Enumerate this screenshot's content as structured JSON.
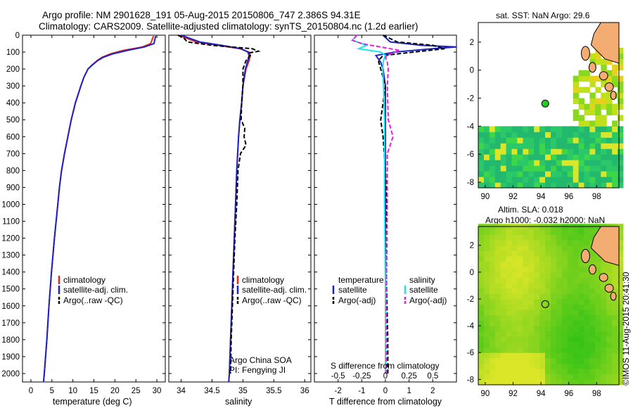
{
  "figure": {
    "title_line1": "Argo profile: NM 2901628_191 05-Aug-2015 20150806_747 2.386S 94.31E",
    "title_line2": "Climatology: CARS2009. Satellite-adjusted climatology: synTS_20150804.nc (1.2d earlier)",
    "credit": "©IMOS 11-Aug-2015 20:41:30",
    "colors": {
      "climatology": "#e8261c",
      "satellite": "#1a22c8",
      "argo": "#000000",
      "salinity_sat": "#19e6ee",
      "salinity_argo": "#e81ee0",
      "ocean_green": "#22cc22",
      "land": "#f3ad72"
    }
  },
  "chart_data": [
    {
      "type": "line",
      "name": "temperature-profile",
      "xlabel": "temperature (deg C)",
      "ylabel": "",
      "xlim": [
        -2,
        32
      ],
      "ylim": [
        2050,
        0
      ],
      "x_ticks": [
        0,
        5,
        10,
        15,
        20,
        25,
        30
      ],
      "y_ticks": [
        0,
        100,
        200,
        300,
        400,
        500,
        600,
        700,
        800,
        900,
        1000,
        1100,
        1200,
        1300,
        1400,
        1500,
        1600,
        1700,
        1800,
        1900,
        2000
      ],
      "legend": [
        "climatology",
        "satellite-adj. clim.",
        "Argo(..raw -QC)"
      ],
      "series": [
        {
          "name": "climatology",
          "color": "#e8261c",
          "depth": [
            5,
            50,
            70,
            90,
            110,
            130,
            150,
            175,
            200,
            250,
            300,
            400,
            500,
            600,
            700,
            800,
            900,
            1000,
            1200,
            1400,
            1600,
            1800,
            2000,
            2050
          ],
          "values": [
            29.2,
            28.5,
            26.5,
            22,
            19,
            17,
            15.8,
            14.6,
            13.6,
            12.6,
            11.9,
            10.6,
            9.6,
            8.8,
            8.0,
            7.3,
            6.8,
            6.4,
            5.6,
            4.9,
            4.3,
            3.8,
            3.2,
            3.0
          ]
        },
        {
          "name": "satellite-adj. clim.",
          "color": "#1a22c8",
          "depth": [
            5,
            50,
            70,
            90,
            110,
            130,
            150,
            175,
            200,
            250,
            300,
            400,
            500,
            600,
            700,
            800,
            900,
            1000,
            1200,
            1400,
            1600,
            1800,
            2000,
            2050
          ],
          "values": [
            29.7,
            29.3,
            27,
            23,
            19.5,
            17.3,
            15.9,
            14.7,
            13.6,
            12.6,
            11.9,
            10.6,
            9.6,
            8.8,
            8.0,
            7.3,
            6.8,
            6.4,
            5.6,
            4.9,
            4.3,
            3.8,
            3.2,
            3.0
          ]
        }
      ]
    },
    {
      "type": "line",
      "name": "salinity-profile",
      "xlabel": "salinity",
      "ylabel": "",
      "xlim": [
        33.8,
        36.1
      ],
      "ylim": [
        2050,
        0
      ],
      "x_ticks": [
        34,
        34.5,
        35,
        35.5,
        36
      ],
      "legend": [
        "climatology",
        "satellite-adj. clim.",
        "Argo(..raw -QC)"
      ],
      "annotation": [
        "Argo China SOA",
        "PI: Fengying JI"
      ],
      "series": [
        {
          "name": "climatology",
          "color": "#e8261c",
          "depth": [
            0,
            20,
            40,
            60,
            80,
            100,
            120,
            150,
            200,
            300,
            400,
            500,
            600,
            800,
            1000,
            1200,
            1400,
            1600,
            1800,
            2000,
            2050
          ],
          "values": [
            33.95,
            34.1,
            34.25,
            34.6,
            34.95,
            35.1,
            35.12,
            35.1,
            35.05,
            35.0,
            34.98,
            34.95,
            34.93,
            34.9,
            34.88,
            34.86,
            34.84,
            34.82,
            34.8,
            34.78,
            34.77
          ]
        },
        {
          "name": "satellite-adj. clim.",
          "color": "#1a22c8",
          "depth": [
            0,
            20,
            40,
            60,
            80,
            100,
            120,
            150,
            200,
            300,
            400,
            500,
            600,
            800,
            1000,
            1200,
            1400,
            1600,
            1800,
            2000,
            2050
          ],
          "values": [
            34.0,
            34.15,
            34.3,
            34.65,
            34.97,
            35.08,
            35.1,
            35.08,
            35.04,
            35.0,
            34.98,
            34.95,
            34.93,
            34.9,
            34.88,
            34.86,
            34.84,
            34.82,
            34.8,
            34.78,
            34.77
          ]
        },
        {
          "name": "Argo(..raw -QC)",
          "color": "#000000",
          "dashed": true,
          "depth": [
            0,
            20,
            40,
            60,
            80,
            95,
            105,
            120,
            150,
            200,
            300,
            400,
            500,
            550,
            600,
            650,
            700,
            800,
            1000,
            1200,
            1400,
            1600,
            1800,
            2000
          ],
          "values": [
            33.95,
            34.05,
            34.1,
            34.5,
            35.15,
            35.25,
            35.1,
            35.12,
            35.05,
            35.0,
            35.0,
            34.98,
            34.97,
            35.03,
            35.02,
            35.05,
            34.96,
            34.92,
            34.9,
            34.87,
            34.85,
            34.83,
            34.81,
            34.8
          ]
        }
      ]
    },
    {
      "type": "line",
      "name": "difference-profile",
      "xlabel": "T difference from climatology",
      "x2label": "S difference from climatology",
      "ylabel": "",
      "xlim": [
        -3,
        3
      ],
      "ylim": [
        2050,
        0
      ],
      "x_ticks": [
        -2,
        -1,
        0,
        1,
        2
      ],
      "x2_ticks": [
        "-0.5",
        "-0.25",
        "0",
        "0.25",
        "0.5"
      ],
      "legend": {
        "temperature_header": "temperature",
        "salinity_header": "salinity",
        "items": [
          "satellite",
          "Argo(-adj)",
          "satellite",
          "Argo(-adj)"
        ]
      },
      "series": [
        {
          "name": "temperature satellite",
          "color": "#1a22c8",
          "depth": [
            0,
            40,
            60,
            70,
            80,
            100,
            120,
            140,
            160,
            200,
            300,
            500,
            1000,
            2000
          ],
          "values": [
            -0.1,
            0.2,
            1.5,
            3.0,
            2.0,
            0.4,
            -0.4,
            -0.3,
            -0.2,
            -0.1,
            0.0,
            0.0,
            0.0,
            0.0
          ]
        },
        {
          "name": "temperature Argo(-adj)",
          "color": "#000000",
          "dashed": true,
          "depth": [
            0,
            40,
            60,
            80,
            100,
            120,
            150,
            200,
            300,
            400,
            500,
            600,
            800,
            1000,
            1200,
            1500,
            1800,
            2000
          ],
          "values": [
            -0.1,
            0.5,
            2.0,
            2.5,
            1.2,
            -0.1,
            -0.3,
            -0.2,
            0.0,
            -0.1,
            -0.2,
            -0.1,
            0.0,
            0.05,
            0.0,
            0.05,
            0.1,
            0.1
          ]
        },
        {
          "name": "salinity satellite",
          "color": "#19e6ee",
          "depth": [
            0,
            30,
            60,
            80,
            100,
            120,
            150,
            200,
            300,
            500,
            800,
            1000,
            1500,
            2000
          ],
          "values": [
            -0.3,
            -0.35,
            -0.2,
            -0.28,
            -0.05,
            0.0,
            -0.02,
            -0.03,
            -0.02,
            -0.01,
            -0.01,
            -0.01,
            0.0,
            0.0
          ]
        },
        {
          "name": "salinity Argo(-adj)",
          "color": "#e81ee0",
          "dashed": true,
          "depth": [
            0,
            30,
            50,
            70,
            90,
            110,
            130,
            160,
            200,
            300,
            500,
            600,
            700,
            1000,
            1500,
            2000
          ],
          "values": [
            -0.3,
            -0.35,
            -0.25,
            -0.05,
            0.15,
            0.05,
            0.0,
            0.02,
            0.03,
            0.02,
            0.03,
            0.08,
            0.02,
            0.02,
            0.01,
            0.01
          ]
        }
      ]
    },
    {
      "type": "heatmap",
      "name": "sst-map",
      "title": "sat. SST: NaN Argo: 29.6",
      "xlim": [
        89.5,
        99.6
      ],
      "ylim": [
        -8.4,
        3.4
      ],
      "x_ticks": [
        90,
        92,
        94,
        96,
        98
      ],
      "y_ticks": [
        2,
        0,
        -2,
        -4,
        -6,
        -8
      ],
      "marker": {
        "lon": 94.31,
        "lat": -2.386
      }
    },
    {
      "type": "heatmap",
      "name": "sla-map",
      "title_line1": "Altim. SLA: 0.018",
      "title_line2": "Argo h1000: -0.032 h2000: NaN",
      "xlim": [
        89.5,
        99.6
      ],
      "ylim": [
        -8.4,
        3.4
      ],
      "x_ticks": [
        90,
        92,
        94,
        96,
        98
      ],
      "y_ticks": [
        2,
        0,
        -2,
        -4,
        -6,
        -8
      ],
      "marker": {
        "lon": 94.31,
        "lat": -2.386
      }
    }
  ]
}
